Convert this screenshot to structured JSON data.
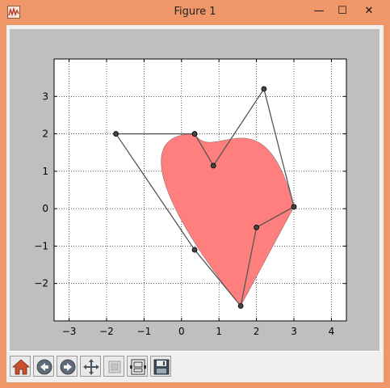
{
  "window": {
    "title": "Figure 1",
    "minimize_glyph": "—",
    "maximize_glyph": "☐",
    "close_glyph": "✕"
  },
  "toolbar": {
    "items": [
      {
        "name": "home-button",
        "icon": "home-icon"
      },
      {
        "name": "back-button",
        "icon": "back-arrow-icon"
      },
      {
        "name": "forward-button",
        "icon": "forward-arrow-icon"
      },
      {
        "name": "pan-button",
        "icon": "move-arrows-icon"
      },
      {
        "name": "zoom-button",
        "icon": "zoom-rect-icon"
      },
      {
        "name": "subplots-button",
        "icon": "subplots-icon"
      },
      {
        "name": "save-button",
        "icon": "floppy-disk-icon"
      }
    ]
  },
  "chart_data": {
    "type": "path-plot",
    "xlim": [
      -3.4,
      4.4
    ],
    "ylim": [
      -3.0,
      4.0
    ],
    "grid": true,
    "xticks": [
      -3,
      -2,
      -1,
      0,
      1,
      2,
      3,
      4
    ],
    "yticks": [
      -2,
      -1,
      0,
      1,
      2,
      3
    ],
    "xtick_labels": [
      "−3",
      "−2",
      "−1",
      "0",
      "1",
      "2",
      "3",
      "4"
    ],
    "ytick_labels": [
      "−2",
      "−1",
      "0",
      "1",
      "2",
      "3"
    ],
    "fill_color": "#ff7f7f",
    "line_color": "#555555",
    "control_points": [
      {
        "x": 1.58,
        "y": -2.6
      },
      {
        "x": 0.35,
        "y": -1.1
      },
      {
        "x": -1.75,
        "y": 2.0
      },
      {
        "x": 0.35,
        "y": 2.0
      },
      {
        "x": 0.85,
        "y": 1.15
      },
      {
        "x": 2.2,
        "y": 3.2
      },
      {
        "x": 3.0,
        "y": 0.05
      },
      {
        "x": 2.0,
        "y": -0.5
      },
      {
        "x": 1.58,
        "y": -2.6
      }
    ]
  }
}
